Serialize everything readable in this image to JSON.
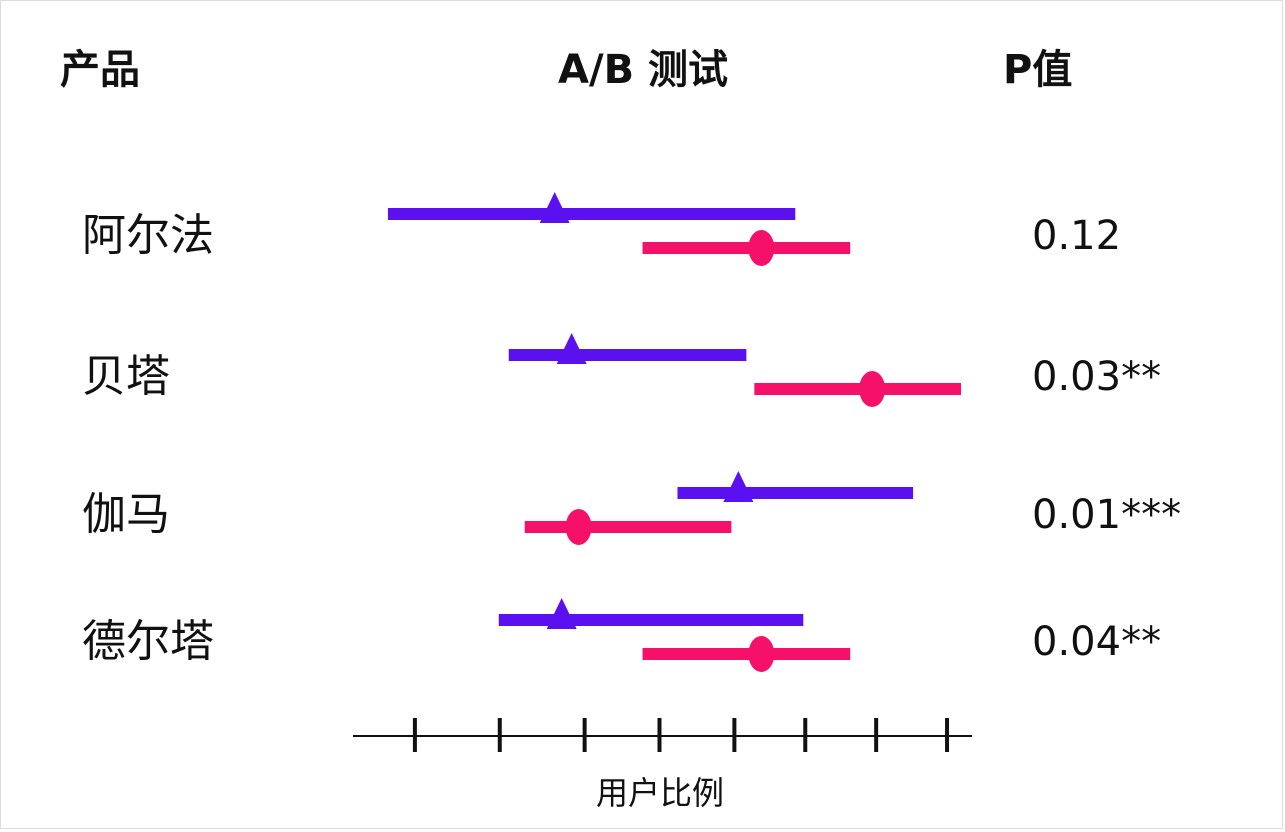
{
  "chart_data": {
    "type": "interval",
    "column_headers": [
      "产品",
      "A/B 测试",
      "P值"
    ],
    "categories": [
      "阿尔法",
      "贝塔",
      "伽马",
      "德尔塔"
    ],
    "pvalues": [
      "0.12",
      "0.03**",
      "0.01***",
      "0.04**"
    ],
    "x_label": "用户比例",
    "xlim": [
      0,
      62
    ],
    "xticks": [
      6.2,
      14.7,
      23.2,
      30.7,
      38.2,
      45.3,
      52.4,
      59.5
    ],
    "series": [
      {
        "color": "#5b10f0",
        "marker": "triangle",
        "low": [
          3.5,
          15.6,
          32.5,
          14.6
        ],
        "values": [
          20.2,
          21.9,
          38.6,
          20.9
        ],
        "high": [
          44.3,
          39.4,
          56.1,
          45.1
        ]
      },
      {
        "color": "#f5106a",
        "marker": "circle",
        "low": [
          29,
          40.2,
          17.2,
          29
        ],
        "values": [
          40.9,
          52,
          22.6,
          40.9
        ],
        "high": [
          49.8,
          60.9,
          37.9,
          49.8
        ]
      }
    ]
  }
}
